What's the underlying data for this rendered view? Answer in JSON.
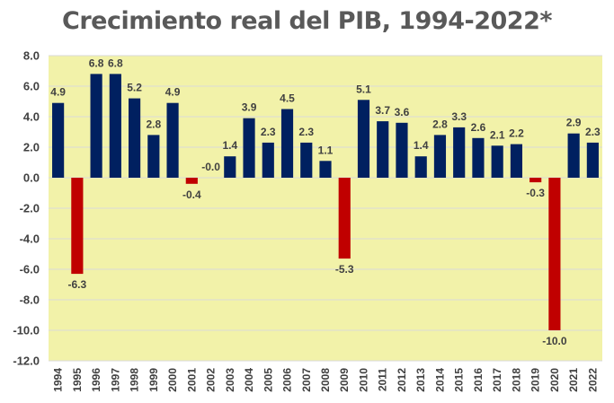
{
  "chart_data": {
    "type": "bar",
    "title": "Crecimiento real del PIB, 1994-2022*",
    "xlabel": "",
    "ylabel": "",
    "ylim": [
      -12,
      8
    ],
    "yticks": [
      "8.0",
      "6.0",
      "4.0",
      "2.0",
      "0.0",
      "-2.0",
      "-4.0",
      "-6.0",
      "-8.0",
      "-10.0",
      "-12.0"
    ],
    "categories": [
      "1994",
      "1995",
      "1996",
      "1997",
      "1998",
      "1999",
      "2000",
      "2001",
      "2002",
      "2003",
      "2004",
      "2005",
      "2006",
      "2007",
      "2008",
      "2009",
      "2010",
      "2011",
      "2012",
      "2013",
      "2014",
      "2015",
      "2016",
      "2017",
      "2018",
      "2019",
      "2020",
      "2021",
      "2022"
    ],
    "values": [
      4.9,
      -6.3,
      6.8,
      6.8,
      5.2,
      2.8,
      4.9,
      -0.4,
      0.0,
      1.4,
      3.9,
      2.3,
      4.5,
      2.3,
      1.1,
      -5.3,
      5.1,
      3.7,
      3.6,
      1.4,
      2.8,
      3.3,
      2.6,
      2.1,
      2.2,
      -0.3,
      -10.0,
      2.9,
      2.3
    ],
    "labels": [
      "4.9",
      "-6.3",
      "6.8",
      "6.8",
      "5.2",
      "2.8",
      "4.9",
      "-0.4",
      "-0.0",
      "1.4",
      "3.9",
      "2.3",
      "4.5",
      "2.3",
      "1.1",
      "-5.3",
      "5.1",
      "3.7",
      "3.6",
      "1.4",
      "2.8",
      "3.3",
      "2.6",
      "2.1",
      "2.2",
      "-0.3",
      "-10.0",
      "2.9",
      "2.3"
    ],
    "grid": true,
    "colors": {
      "positive": "#002060",
      "negative": "#c00000",
      "plot_background": "#f2f2a9",
      "gridline": "#d9d9d9"
    }
  }
}
